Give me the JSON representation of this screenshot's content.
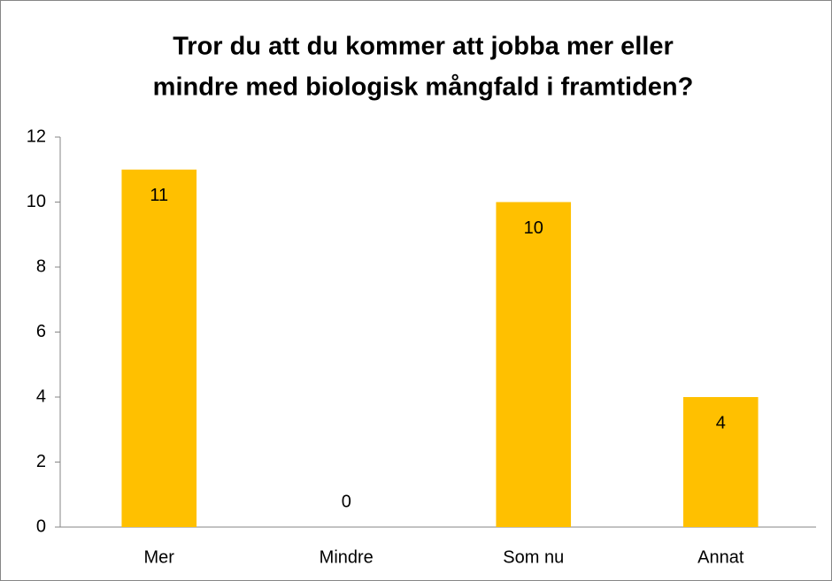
{
  "chart_data": {
    "type": "bar",
    "title": [
      "Tror du att du kommer att jobba mer eller",
      "mindre med biologisk mångfald i framtiden?"
    ],
    "categories": [
      "Mer",
      "Mindre",
      "Som nu",
      "Annat"
    ],
    "values": [
      11,
      0,
      10,
      4
    ],
    "color": "#ffc000",
    "ylim": [
      0,
      12
    ],
    "yticks": [
      0,
      2,
      4,
      6,
      8,
      10,
      12
    ],
    "grid": false
  }
}
